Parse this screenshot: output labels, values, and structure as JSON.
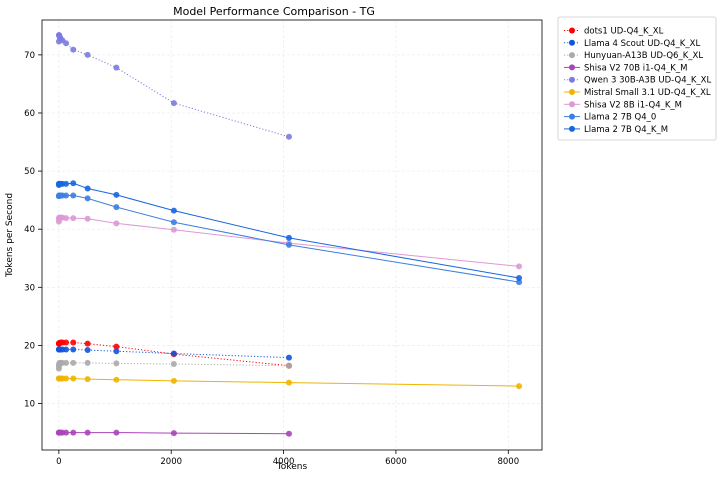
{
  "chart_data": {
    "type": "line",
    "title": "Model Performance Comparison - TG",
    "xlabel": "Tokens",
    "ylabel": "Tokens per Second",
    "xlim": [
      -300,
      8600
    ],
    "ylim": [
      2,
      76
    ],
    "xticks": [
      0,
      2000,
      4000,
      6000,
      8000
    ],
    "yticks": [
      10,
      20,
      30,
      40,
      50,
      60,
      70
    ],
    "grid": true,
    "legend_position": "outside-right",
    "series": [
      {
        "name": "dots1 UD-Q4_K_XL",
        "color": "#ff0000",
        "linestyle": "dotted",
        "x": [
          1,
          2,
          4,
          8,
          16,
          32,
          64,
          128,
          256,
          512,
          1024,
          2048,
          4096
        ],
        "y": [
          20.3,
          20.3,
          20.4,
          20.4,
          20.4,
          20.5,
          20.5,
          20.5,
          20.5,
          20.3,
          19.8,
          18.5,
          16.5
        ]
      },
      {
        "name": "Llama 4 Scout UD-Q4_K_XL",
        "color": "#1155dd",
        "linestyle": "dotted",
        "x": [
          1,
          2,
          4,
          8,
          16,
          32,
          64,
          128,
          256,
          512,
          1024,
          2048,
          4096
        ],
        "y": [
          19.3,
          19.3,
          19.3,
          19.3,
          19.3,
          19.3,
          19.3,
          19.3,
          19.3,
          19.2,
          19.0,
          18.6,
          17.9
        ]
      },
      {
        "name": "Hunyuan-A13B UD-Q6_K_XL",
        "color": "#aaaaaa",
        "linestyle": "dotted",
        "x": [
          1,
          2,
          4,
          8,
          16,
          32,
          64,
          128,
          256,
          512,
          1024,
          2048,
          4096
        ],
        "y": [
          16.0,
          16.4,
          16.7,
          16.9,
          17.0,
          17.0,
          17.0,
          17.0,
          17.0,
          17.0,
          16.9,
          16.8,
          16.5
        ]
      },
      {
        "name": "Shisa V2 70B i1-Q4_K_M",
        "color": "#aa44bb",
        "linestyle": "solid",
        "x": [
          1,
          2,
          4,
          8,
          16,
          32,
          64,
          128,
          256,
          512,
          1024,
          2048,
          4096
        ],
        "y": [
          5.0,
          5.0,
          5.0,
          5.0,
          5.0,
          5.0,
          5.0,
          5.0,
          5.0,
          5.0,
          5.0,
          4.9,
          4.8
        ]
      },
      {
        "name": "Qwen 3 30B-A3B UD-Q4_K_XL",
        "color": "#7b7be0",
        "linestyle": "dotted",
        "x": [
          1,
          2,
          4,
          8,
          16,
          32,
          64,
          128,
          256,
          512,
          1024,
          2048,
          4096
        ],
        "y": [
          72.3,
          73.4,
          73.4,
          73.3,
          73.0,
          72.8,
          72.5,
          72.0,
          70.9,
          70.0,
          67.8,
          61.7,
          55.9
        ]
      },
      {
        "name": "Mistral Small 3.1 UD-Q4_K_XL",
        "color": "#f0b400",
        "linestyle": "solid",
        "x": [
          1,
          2,
          4,
          8,
          16,
          32,
          64,
          128,
          256,
          512,
          1024,
          2048,
          4096,
          8192
        ],
        "y": [
          14.3,
          14.3,
          14.3,
          14.3,
          14.3,
          14.3,
          14.3,
          14.3,
          14.3,
          14.2,
          14.1,
          13.9,
          13.6,
          13.0
        ]
      },
      {
        "name": "Shisa V2 8B i1-Q4_K_M",
        "color": "#dd99d4",
        "linestyle": "solid",
        "x": [
          1,
          2,
          4,
          8,
          16,
          32,
          64,
          128,
          256,
          512,
          1024,
          2048,
          4096,
          8192
        ],
        "y": [
          41.3,
          41.8,
          41.9,
          42.0,
          42.0,
          42.0,
          42.0,
          41.9,
          41.9,
          41.8,
          41.0,
          39.9,
          37.6,
          33.6
        ]
      },
      {
        "name": "Llama 2 7B Q4_0",
        "color": "#3d7fe0",
        "linestyle": "solid",
        "x": [
          1,
          2,
          4,
          8,
          16,
          32,
          64,
          128,
          256,
          512,
          1024,
          2048,
          4096,
          8192
        ],
        "y": [
          45.7,
          45.7,
          45.8,
          45.8,
          45.8,
          45.8,
          45.8,
          45.8,
          45.8,
          45.3,
          43.8,
          41.2,
          37.3,
          30.9
        ]
      },
      {
        "name": "Llama 2 7B Q4_K_M",
        "color": "#1a66e0",
        "linestyle": "solid",
        "x": [
          1,
          2,
          4,
          8,
          16,
          32,
          64,
          128,
          256,
          512,
          1024,
          2048,
          4096,
          8192
        ],
        "y": [
          47.6,
          47.8,
          47.8,
          47.8,
          47.8,
          47.8,
          47.8,
          47.8,
          47.9,
          47.0,
          45.9,
          43.2,
          38.5,
          31.6
        ]
      }
    ]
  }
}
